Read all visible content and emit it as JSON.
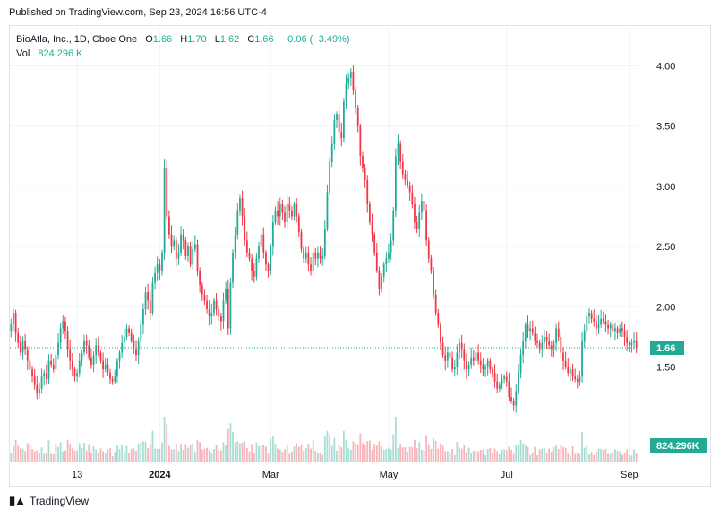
{
  "header": {
    "published": "Published on TradingView.com, Sep 23, 2024 16:56 UTC-4"
  },
  "legend": {
    "symbol": "BioAtla, Inc., 1D, Cboe One",
    "o_label": "O",
    "o_value": "1.66",
    "h_label": "H",
    "h_value": "1.70",
    "l_label": "L",
    "l_value": "1.62",
    "c_label": "C",
    "c_value": "1.66",
    "change": "−0.06 (−3.49%)",
    "vol_label": "Vol",
    "vol_value": "824.296 K"
  },
  "footer": {
    "brand": "TradingView"
  },
  "colors": {
    "up": "#22ab94",
    "down": "#f23645",
    "vol_up": "#a8ddd4",
    "vol_down": "#f7b4b9",
    "grid": "#f0f3fa"
  },
  "chart_data": {
    "type": "candlestick",
    "y_ticks": [
      "4.00",
      "3.50",
      "3.00",
      "2.50",
      "2.00",
      "1.50"
    ],
    "y_tick_values": [
      4.0,
      3.5,
      3.0,
      2.5,
      2.0,
      1.5
    ],
    "ylim": [
      1.05,
      4.1
    ],
    "x_tick_labels": [
      "13",
      "2024",
      "Mar",
      "May",
      "Jul",
      "Sep"
    ],
    "x_tick_indices": [
      28,
      63,
      110,
      160,
      210,
      262
    ],
    "last_price_label": "1.66",
    "last_price": 1.66,
    "volume_label": "824.296K",
    "grid": true,
    "close_series": [
      1.85,
      1.95,
      1.78,
      1.7,
      1.62,
      1.72,
      1.65,
      1.55,
      1.48,
      1.42,
      1.35,
      1.28,
      1.32,
      1.42,
      1.45,
      1.4,
      1.55,
      1.52,
      1.48,
      1.6,
      1.7,
      1.82,
      1.88,
      1.8,
      1.65,
      1.55,
      1.48,
      1.42,
      1.45,
      1.55,
      1.62,
      1.72,
      1.68,
      1.58,
      1.52,
      1.6,
      1.68,
      1.62,
      1.55,
      1.48,
      1.52,
      1.45,
      1.4,
      1.38,
      1.42,
      1.55,
      1.62,
      1.7,
      1.75,
      1.82,
      1.78,
      1.72,
      1.65,
      1.6,
      1.72,
      1.85,
      1.98,
      2.12,
      2.05,
      1.95,
      2.2,
      2.28,
      2.35,
      2.3,
      2.45,
      3.15,
      2.75,
      2.6,
      2.5,
      2.55,
      2.4,
      2.45,
      2.6,
      2.55,
      2.42,
      2.5,
      2.35,
      2.48,
      2.52,
      2.3,
      2.18,
      2.1,
      2.05,
      1.98,
      1.92,
      1.95,
      2.05,
      1.98,
      1.92,
      1.88,
      2.05,
      2.15,
      1.82,
      2.2,
      2.45,
      2.6,
      2.8,
      2.9,
      2.75,
      2.55,
      2.45,
      2.4,
      2.3,
      2.25,
      2.4,
      2.5,
      2.6,
      2.45,
      2.35,
      2.3,
      2.5,
      2.7,
      2.8,
      2.75,
      2.85,
      2.78,
      2.7,
      2.85,
      2.8,
      2.75,
      2.85,
      2.75,
      2.62,
      2.48,
      2.4,
      2.45,
      2.35,
      2.3,
      2.45,
      2.4,
      2.45,
      2.4,
      2.42,
      2.65,
      2.95,
      3.2,
      3.35,
      3.55,
      3.6,
      3.45,
      3.4,
      3.7,
      3.85,
      3.9,
      3.95,
      3.8,
      3.65,
      3.5,
      3.25,
      3.15,
      3.05,
      2.85,
      2.7,
      2.6,
      2.45,
      2.3,
      2.15,
      2.25,
      2.35,
      2.4,
      2.45,
      2.55,
      2.8,
      3.25,
      3.35,
      3.2,
      3.1,
      3.05,
      3.0,
      2.95,
      2.85,
      2.7,
      2.65,
      2.78,
      2.88,
      2.8,
      2.55,
      2.4,
      2.3,
      2.1,
      1.95,
      1.85,
      1.7,
      1.6,
      1.55,
      1.62,
      1.58,
      1.48,
      1.5,
      1.62,
      1.7,
      1.65,
      1.55,
      1.48,
      1.52,
      1.58,
      1.55,
      1.62,
      1.55,
      1.52,
      1.48,
      1.5,
      1.55,
      1.48,
      1.45,
      1.38,
      1.32,
      1.35,
      1.4,
      1.42,
      1.38,
      1.25,
      1.22,
      1.18,
      1.3,
      1.45,
      1.6,
      1.72,
      1.85,
      1.8,
      1.82,
      1.78,
      1.72,
      1.7,
      1.65,
      1.7,
      1.75,
      1.72,
      1.68,
      1.65,
      1.7,
      1.82,
      1.75,
      1.62,
      1.55,
      1.5,
      1.45,
      1.48,
      1.42,
      1.4,
      1.38,
      1.42,
      1.72,
      1.8,
      1.92,
      1.95,
      1.9,
      1.88,
      1.82,
      1.85,
      1.9,
      1.88,
      1.85,
      1.82,
      1.85,
      1.8,
      1.82,
      1.78,
      1.82,
      1.8,
      1.75,
      1.7,
      1.68,
      1.7,
      1.72,
      1.66
    ]
  }
}
